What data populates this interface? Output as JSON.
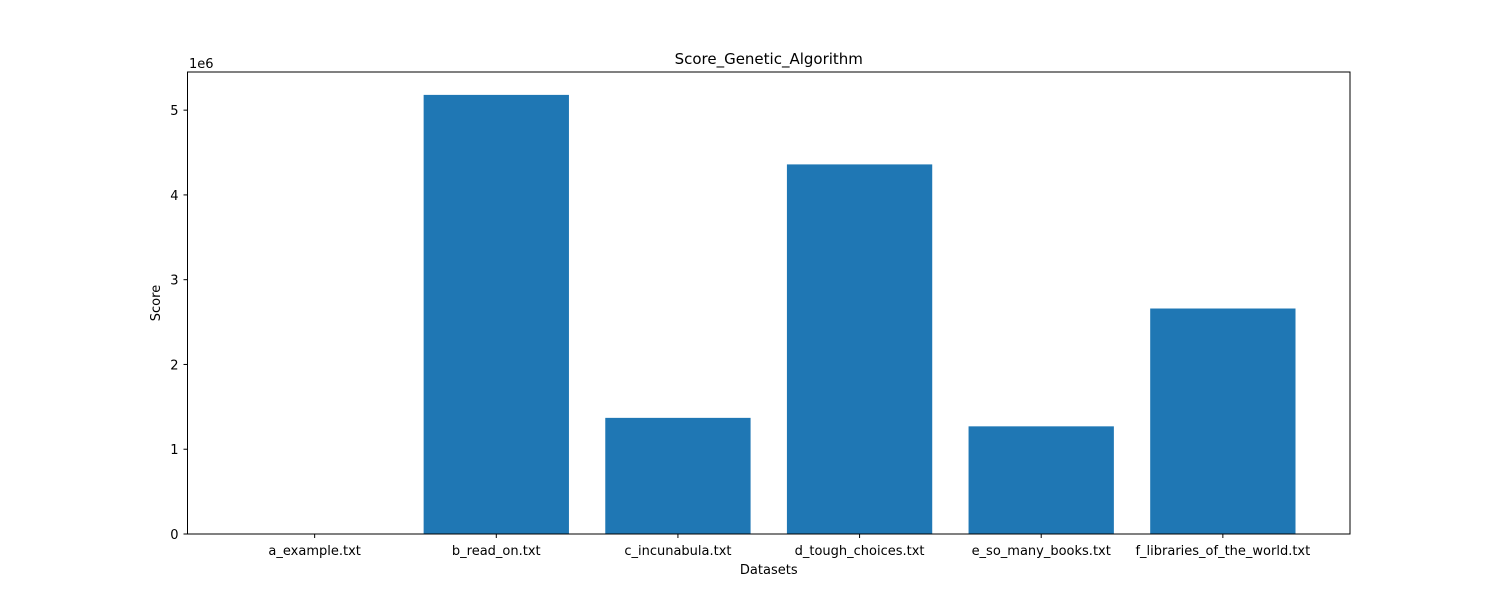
{
  "chart_data": {
    "type": "bar",
    "title": "Score_Genetic_Algorithm",
    "xlabel": "Datasets",
    "ylabel": "Score",
    "y_scale_label": "1e6",
    "ylim": [
      0,
      5.45
    ],
    "yticks": [
      0,
      1,
      2,
      3,
      4,
      5
    ],
    "grid": false,
    "categories": [
      "a_example.txt",
      "b_read_on.txt",
      "c_incunabula.txt",
      "d_tough_choices.txt",
      "e_so_many_books.txt",
      "f_libraries_of_the_world.txt"
    ],
    "values": [
      2e-05,
      5.18,
      1.37,
      4.36,
      1.27,
      2.66
    ],
    "bar_color": "#1f77b4"
  }
}
